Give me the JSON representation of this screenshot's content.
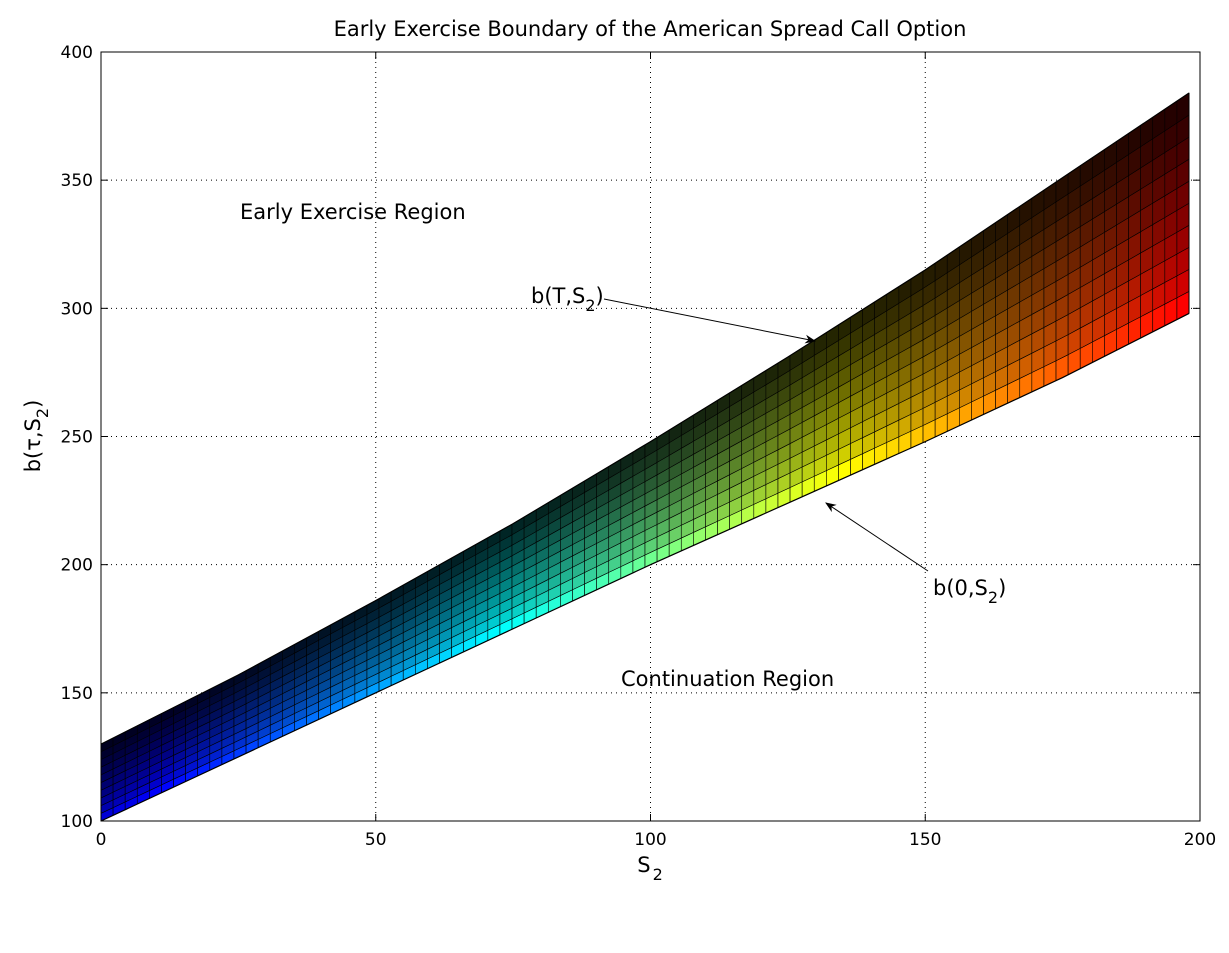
{
  "chart_data": {
    "type": "area",
    "title": "Early Exercise Boundary of the American Spread Call Option",
    "xlabel": {
      "base": "S",
      "sub": "2"
    },
    "ylabel": {
      "base": "b(τ,S",
      "sub": "2",
      "suffix": ")"
    },
    "xlim": [
      0,
      200
    ],
    "ylim": [
      100,
      400
    ],
    "xticks": [
      0,
      50,
      100,
      150,
      200
    ],
    "yticks": [
      100,
      150,
      200,
      250,
      300,
      350,
      400
    ],
    "grid": true,
    "colormap": "jet",
    "series": [
      {
        "name": "b(0,S2)",
        "x": [
          0,
          25,
          50,
          75,
          100,
          125,
          150,
          175,
          198
        ],
        "values": [
          100,
          125,
          150,
          175,
          200,
          224,
          248,
          273,
          298
        ]
      },
      {
        "name": "b(T,S2)",
        "x": [
          0,
          25,
          50,
          75,
          100,
          125,
          150,
          175,
          198
        ],
        "values": [
          130,
          157,
          186,
          216,
          248,
          281,
          315,
          351,
          384
        ]
      }
    ],
    "regions": {
      "exercise": "Early Exercise Region",
      "continuation": "Continuation Region"
    },
    "annotations": [
      {
        "text_base": "b(T,S",
        "text_sub": "2",
        "text_suffix": ")",
        "target_x": 130,
        "target_y": 287
      },
      {
        "text_base": "b(0,S",
        "text_sub": "2",
        "text_suffix": ")",
        "target_x": 131,
        "target_y": 225
      }
    ]
  }
}
